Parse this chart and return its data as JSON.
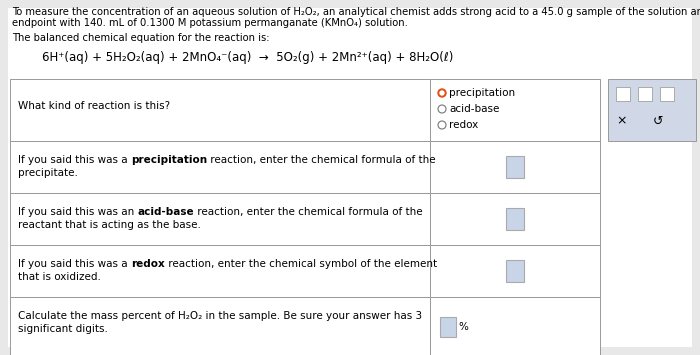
{
  "bg_color": "#e8e8e8",
  "page_bg": "#ffffff",
  "title_line1": "To measure the concentration of an aqueous solution of H₂O₂, an analytical chemist adds strong acid to a 45.0 g sample of the solution and titrates it to the",
  "title_line2": "endpoint with 140. mL of 0.1300 M potassium permanganate (KMnO₄) solution.",
  "balanced_label": "The balanced chemical equation for the reaction is:",
  "equation": "6H⁺(aq) + 5H₂O₂(aq) + 2MnO₄⁻(aq)  →  5O₂(g) + 2Mn²⁺(aq) + 8H₂O(ℓ)",
  "font_size_body": 7.5,
  "font_size_eq": 8.5,
  "row0_question": "What kind of reaction is this?",
  "row0_options": [
    "precipitation",
    "acid-base",
    "redox"
  ],
  "row0_selected": "precipitation",
  "row1_q_normal1": "If you said this was a ",
  "row1_q_bold": "precipitation",
  "row1_q_normal2": " reaction, enter the chemical formula of the",
  "row1_q_line2": "precipitate.",
  "row2_q_normal1": "If you said this was an ",
  "row2_q_bold": "acid-base",
  "row2_q_normal2": " reaction, enter the chemical formula of the",
  "row2_q_line2": "reactant that is acting as the base.",
  "row3_q_normal1": "If you said this was a ",
  "row3_q_bold": "redox",
  "row3_q_normal2": " reaction, enter the chemical symbol of the element",
  "row3_q_line2": "that is oxidized.",
  "row4_q_line1": "Calculate the mass percent of H₂O₂ in the sample. Be sure your answer has 3",
  "row4_q_line2": "significant digits.",
  "selected_color": "#e05010",
  "unselected_color": "#777777",
  "border_color": "#999999",
  "input_box_bg": "#c8d4e8",
  "toolbar_bg": "#d0d8e8"
}
